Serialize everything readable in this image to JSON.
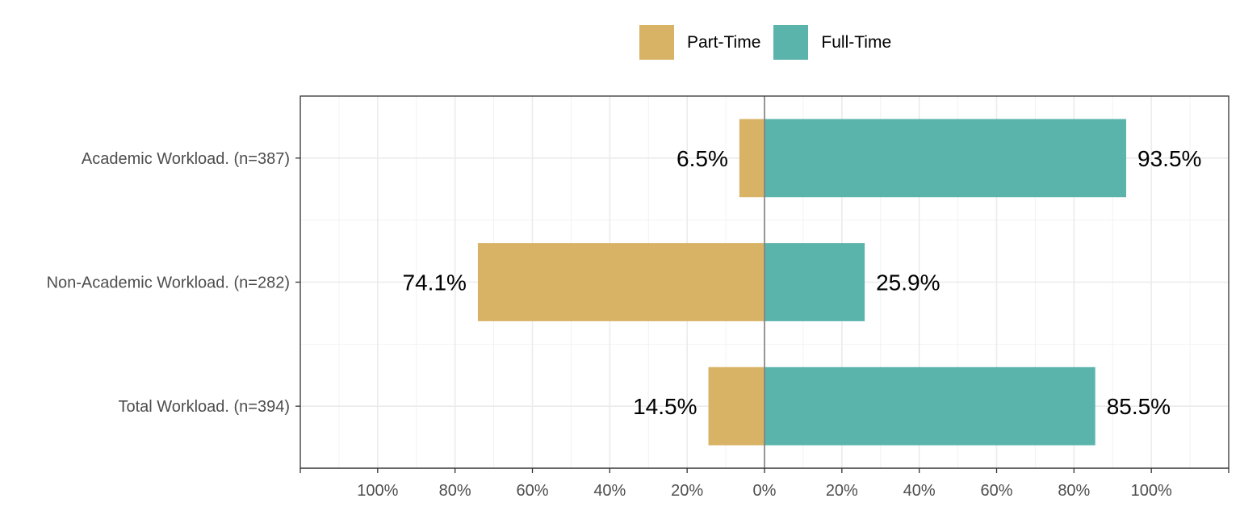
{
  "chart_data": {
    "type": "bar",
    "orientation": "horizontal",
    "stacking": "diverging",
    "categories": [
      "Academic Workload. (n=387)",
      "Non-Academic Workload. (n=282)",
      "Total Workload. (n=394)"
    ],
    "series": [
      {
        "name": "Part-Time",
        "values": [
          6.5,
          74.1,
          14.5
        ],
        "color": "#D8B365",
        "direction": "left"
      },
      {
        "name": "Full-Time",
        "values": [
          93.5,
          25.9,
          85.5
        ],
        "color": "#5AB4AC",
        "direction": "right"
      }
    ],
    "data_labels": {
      "Part-Time": [
        "6.5%",
        "74.1%",
        "14.5%"
      ],
      "Full-Time": [
        "93.5%",
        "25.9%",
        "85.5%"
      ]
    },
    "xlim": [
      -120,
      120
    ],
    "x_ticks": [
      -100,
      -80,
      -60,
      -40,
      -20,
      0,
      20,
      40,
      60,
      80,
      100
    ],
    "x_tick_labels": [
      "100%",
      "80%",
      "60%",
      "40%",
      "20%",
      "0%",
      "20%",
      "40%",
      "60%",
      "80%",
      "100%"
    ],
    "xlabel": "",
    "ylabel": "",
    "title": "",
    "grid": true,
    "legend_position": "top"
  },
  "legend": {
    "items": [
      {
        "label": "Part-Time",
        "color": "#D8B365"
      },
      {
        "label": "Full-Time",
        "color": "#5AB4AC"
      }
    ]
  }
}
